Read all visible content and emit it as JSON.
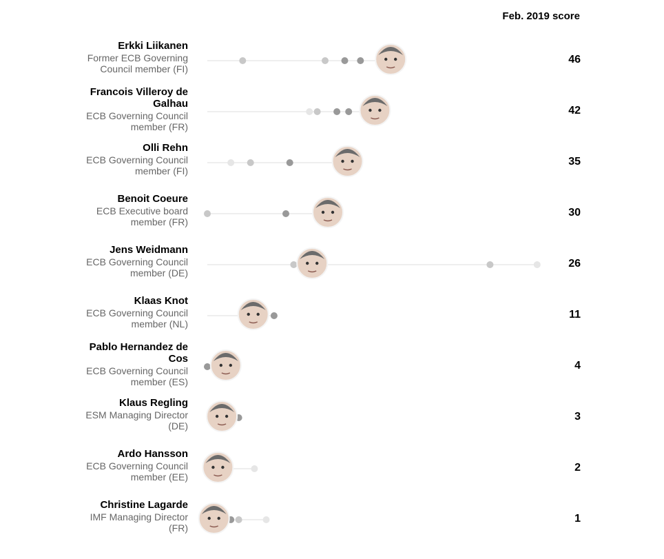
{
  "header": {
    "score_label": "Feb. 2019 score"
  },
  "colors": {
    "line": "#dddddd",
    "dot_dark": "#999999",
    "dot_mid": "#c8c8c8",
    "dot_light": "#e6e6e6",
    "text_secondary": "#666666"
  },
  "chart_data": {
    "type": "scatter",
    "title": "",
    "xlabel": "",
    "ylabel": "",
    "xlim": [
      0,
      100
    ],
    "series_note_values_are_history_dots": true,
    "rows": [
      {
        "name": "Erkki Liikanen",
        "role": "Former ECB Governing Council member (FI)",
        "score": 46,
        "history": [
          {
            "v": 9,
            "shade": "mid"
          },
          {
            "v": 30,
            "shade": "mid"
          },
          {
            "v": 35,
            "shade": "dark"
          },
          {
            "v": 39,
            "shade": "dark"
          }
        ]
      },
      {
        "name": "Francois Villeroy de Galhau",
        "role": "ECB Governing Council member (FR)",
        "score": 42,
        "history": [
          {
            "v": 26,
            "shade": "light"
          },
          {
            "v": 28,
            "shade": "mid"
          },
          {
            "v": 33,
            "shade": "dark"
          },
          {
            "v": 36,
            "shade": "dark"
          }
        ]
      },
      {
        "name": "Olli Rehn",
        "role": "ECB Governing Council member (FI)",
        "score": 35,
        "history": [
          {
            "v": 6,
            "shade": "light"
          },
          {
            "v": 11,
            "shade": "mid"
          },
          {
            "v": 21,
            "shade": "dark"
          }
        ]
      },
      {
        "name": "Benoit Coeure",
        "role": "ECB Executive board member (FR)",
        "score": 30,
        "history": [
          {
            "v": 0,
            "shade": "mid"
          },
          {
            "v": 20,
            "shade": "dark"
          }
        ]
      },
      {
        "name": "Jens Weidmann",
        "role": "ECB Governing Council member (DE)",
        "score": 26,
        "history": [
          {
            "v": 22,
            "shade": "mid"
          },
          {
            "v": 72,
            "shade": "mid"
          },
          {
            "v": 84,
            "shade": "light"
          }
        ]
      },
      {
        "name": "Klaas Knot",
        "role": "ECB Governing Council member (NL)",
        "score": 11,
        "history": [
          {
            "v": 17,
            "shade": "dark"
          }
        ]
      },
      {
        "name": "Pablo Hernandez de Cos",
        "role": "ECB Governing Council member (ES)",
        "score": 4,
        "history": [
          {
            "v": 0,
            "shade": "dark"
          }
        ]
      },
      {
        "name": "Klaus Regling",
        "role": "ESM Managing Director (DE)",
        "score": 3,
        "history": [
          {
            "v": 8,
            "shade": "dark"
          }
        ]
      },
      {
        "name": "Ardo Hansson",
        "role": "ECB Governing Council member (EE)",
        "score": 2,
        "history": [
          {
            "v": 12,
            "shade": "light"
          }
        ]
      },
      {
        "name": "Christine Lagarde",
        "role": "IMF Managing Director (FR)",
        "score": 1,
        "history": [
          {
            "v": 6,
            "shade": "dark"
          },
          {
            "v": 8,
            "shade": "mid"
          },
          {
            "v": 15,
            "shade": "light"
          }
        ]
      }
    ]
  }
}
